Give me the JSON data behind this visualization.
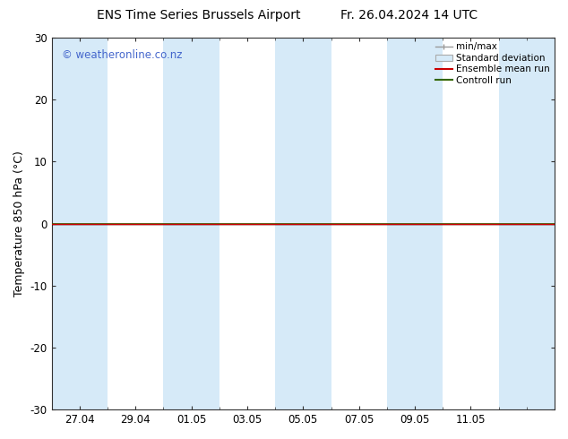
{
  "title_left": "ENS Time Series Brussels Airport",
  "title_right": "Fr. 26.04.2024 14 UTC",
  "ylabel": "Temperature 850 hPa (°C)",
  "ylim": [
    -30,
    30
  ],
  "yticks": [
    -30,
    -20,
    -10,
    0,
    10,
    20,
    30
  ],
  "xtick_labels": [
    "27.04",
    "29.04",
    "01.05",
    "03.05",
    "05.05",
    "07.05",
    "09.05",
    "11.05"
  ],
  "xtick_positions": [
    0,
    1,
    2,
    3,
    4,
    5,
    6,
    7
  ],
  "xlim": [
    -0.5,
    8.5
  ],
  "watermark": "© weatheronline.co.nz",
  "watermark_color": "#4466cc",
  "bg_color": "#ffffff",
  "plot_bg_color": "#ffffff",
  "shaded_bands": [
    {
      "x_start": -0.5,
      "x_end": 0.5,
      "color": "#d6eaf8"
    },
    {
      "x_start": 1.5,
      "x_end": 2.5,
      "color": "#d6eaf8"
    },
    {
      "x_start": 3.5,
      "x_end": 4.5,
      "color": "#d6eaf8"
    },
    {
      "x_start": 5.5,
      "x_end": 6.5,
      "color": "#d6eaf8"
    },
    {
      "x_start": 7.5,
      "x_end": 8.5,
      "color": "#d6eaf8"
    }
  ],
  "zero_line_y": 0,
  "zero_line_color": "#000000",
  "control_run_y": 0,
  "control_run_color": "#336600",
  "ensemble_mean_color": "#cc0000",
  "legend_labels": [
    "min/max",
    "Standard deviation",
    "Ensemble mean run",
    "Controll run"
  ],
  "legend_line_color": "#888888",
  "legend_band_color": "#d6eaf8",
  "title_fontsize": 10,
  "axis_fontsize": 9,
  "tick_fontsize": 8.5
}
